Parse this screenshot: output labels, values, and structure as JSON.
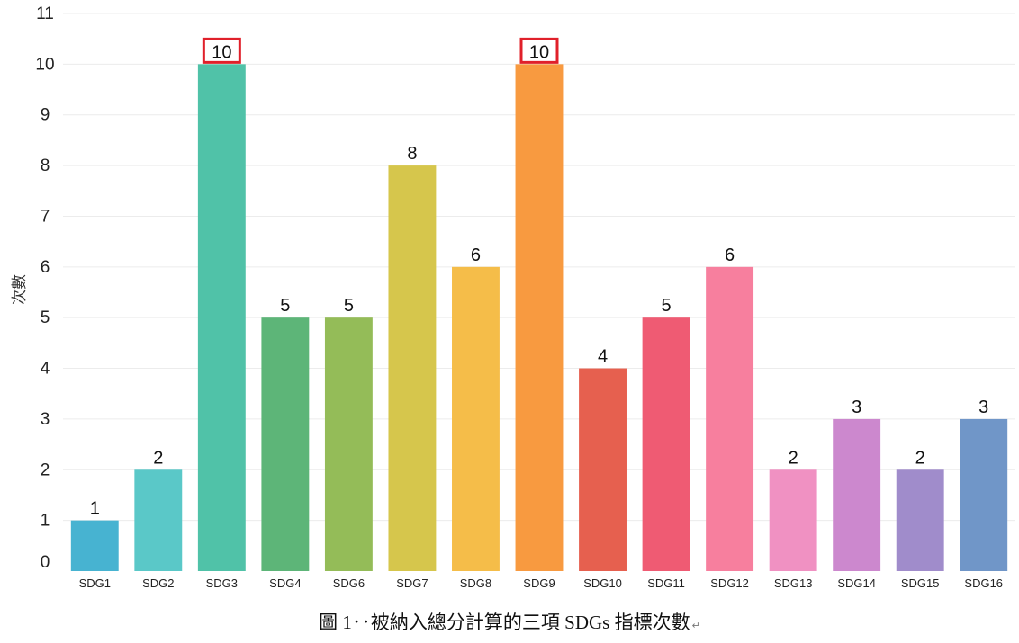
{
  "chart_data": {
    "type": "bar",
    "ylabel": "次數",
    "xlabel": "",
    "ylim": [
      0,
      11
    ],
    "yticks": [
      "0",
      "1",
      "2",
      "3",
      "4",
      "5",
      "6",
      "7",
      "8",
      "9",
      "10",
      "11"
    ],
    "categories": [
      "SDG1",
      "SDG2",
      "SDG3",
      "SDG4",
      "SDG6",
      "SDG7",
      "SDG8",
      "SDG9",
      "SDG10",
      "SDG11",
      "SDG12",
      "SDG13",
      "SDG14",
      "SDG15",
      "SDG16"
    ],
    "values": [
      1,
      2,
      10,
      5,
      5,
      8,
      6,
      10,
      4,
      5,
      6,
      2,
      3,
      2,
      3
    ],
    "colors": [
      "#47b3d1",
      "#5ac8c8",
      "#50c2a8",
      "#5db578",
      "#94bc58",
      "#d6c64c",
      "#f5bd49",
      "#f89a40",
      "#e6604f",
      "#ef5b73",
      "#f77f9e",
      "#f091c2",
      "#cc88ce",
      "#a08ccb",
      "#7096c8"
    ],
    "highlighted": [
      "SDG3",
      "SDG9"
    ],
    "highlight_color": "#e0202a",
    "grid": true,
    "legend": "none"
  },
  "caption": {
    "text": "圖 1‥被納入總分計算的三項 SDGs 指標次數",
    "mark": "↵"
  }
}
